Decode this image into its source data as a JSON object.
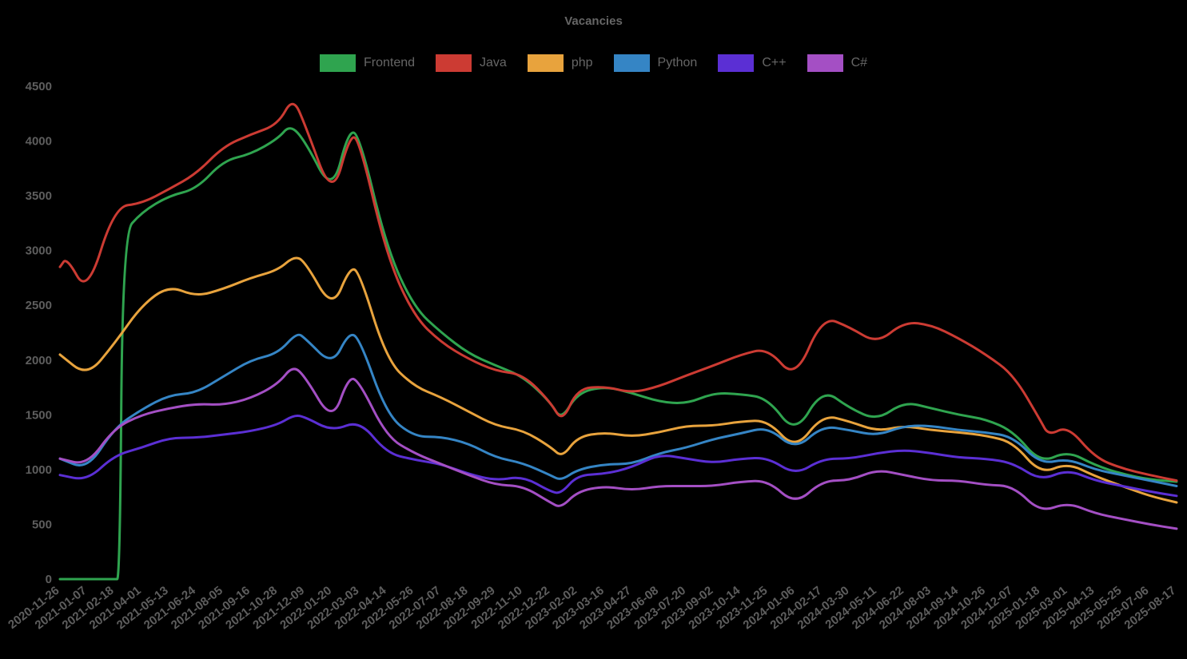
{
  "chart_data": {
    "type": "line",
    "title": "Vacancies",
    "xlabel": "",
    "ylabel": "",
    "ylim": [
      0,
      4500
    ],
    "yticks": [
      0,
      500,
      1000,
      1500,
      2000,
      2500,
      3000,
      3500,
      4000,
      4500
    ],
    "grid": false,
    "legend_position": "top",
    "background_color": "#000000",
    "text_color": "#5e5e5e",
    "categories": [
      "2020-11-26",
      "2021-01-07",
      "2021-02-18",
      "2021-04-01",
      "2021-05-13",
      "2021-06-24",
      "2021-08-05",
      "2021-09-16",
      "2021-10-28",
      "2021-12-09",
      "2022-01-20",
      "2022-03-03",
      "2022-04-14",
      "2022-05-26",
      "2022-07-07",
      "2022-08-18",
      "2022-09-29",
      "2022-11-10",
      "2022-12-22",
      "2023-02-02",
      "2023-03-16",
      "2023-04-27",
      "2023-06-08",
      "2023-07-20",
      "2023-09-02",
      "2023-10-14",
      "2023-11-25",
      "2024-01-06",
      "2024-02-17",
      "2024-03-30",
      "2024-05-11",
      "2024-06-22",
      "2024-08-03",
      "2024-09-14",
      "2024-10-26",
      "2024-12-07",
      "2025-01-18",
      "2025-03-01",
      "2025-04-13",
      "2025-05-25",
      "2025-07-06",
      "2025-08-17"
    ],
    "series": [
      {
        "name": "Frontend",
        "color": "#2fa44f",
        "values": [
          0,
          0,
          0,
          3350,
          3500,
          3560,
          3820,
          3880,
          4020,
          4000,
          3520,
          4050,
          3020,
          2480,
          2250,
          2060,
          1950,
          1850,
          1620,
          1700,
          1760,
          1700,
          1620,
          1600,
          1700,
          1690,
          1650,
          1320,
          1740,
          1560,
          1450,
          1620,
          1560,
          1500,
          1460,
          1350,
          1060,
          1170,
          1040,
          960,
          910,
          890
        ],
        "extra_points": [
          {
            "i": 2.2,
            "v": 0
          },
          {
            "i": 2.3,
            "v": 3150
          },
          {
            "i": 8.45,
            "v": 4150
          },
          {
            "i": 10.6,
            "v": 4100
          },
          {
            "i": 18.4,
            "v": 1450
          }
        ]
      },
      {
        "name": "Java",
        "color": "#cc3b33",
        "values": [
          2850,
          2600,
          3400,
          3430,
          3560,
          3700,
          3950,
          4060,
          4150,
          4150,
          3470,
          4000,
          2950,
          2400,
          2160,
          2010,
          1900,
          1870,
          1620,
          1740,
          1760,
          1700,
          1760,
          1860,
          1950,
          2050,
          2110,
          1820,
          2400,
          2300,
          2150,
          2350,
          2320,
          2200,
          2050,
          1870,
          1450,
          1400,
          1110,
          1010,
          950,
          900
        ],
        "extra_points": [
          {
            "i": 0.25,
            "v": 2940
          },
          {
            "i": 8.55,
            "v": 4400
          },
          {
            "i": 10.65,
            "v": 4060
          },
          {
            "i": 18.45,
            "v": 1430
          },
          {
            "i": 36.3,
            "v": 1310
          }
        ]
      },
      {
        "name": "php",
        "color": "#e8a33d",
        "values": [
          2050,
          1850,
          2150,
          2500,
          2680,
          2580,
          2650,
          2750,
          2820,
          2900,
          2460,
          2800,
          2000,
          1760,
          1660,
          1530,
          1400,
          1360,
          1210,
          1300,
          1340,
          1300,
          1340,
          1400,
          1400,
          1440,
          1450,
          1180,
          1500,
          1440,
          1350,
          1400,
          1360,
          1340,
          1310,
          1250,
          960,
          1060,
          940,
          850,
          760,
          700
        ],
        "extra_points": [
          {
            "i": 8.6,
            "v": 2950
          },
          {
            "i": 10.65,
            "v": 2850
          },
          {
            "i": 18.45,
            "v": 1110
          }
        ]
      },
      {
        "name": "Python",
        "color": "#3585c5",
        "values": [
          1100,
          1000,
          1380,
          1550,
          1680,
          1700,
          1850,
          2000,
          2060,
          2200,
          1950,
          2200,
          1500,
          1300,
          1300,
          1240,
          1110,
          1060,
          950,
          1000,
          1050,
          1050,
          1150,
          1200,
          1280,
          1330,
          1390,
          1180,
          1400,
          1360,
          1310,
          1400,
          1400,
          1360,
          1340,
          1300,
          1050,
          1100,
          1000,
          950,
          900,
          850
        ],
        "extra_points": [
          {
            "i": 8.7,
            "v": 2250
          },
          {
            "i": 10.6,
            "v": 2250
          },
          {
            "i": 18.4,
            "v": 900
          }
        ]
      },
      {
        "name": "C++",
        "color": "#5b2fd4",
        "values": [
          950,
          900,
          1130,
          1200,
          1290,
          1290,
          1320,
          1350,
          1410,
          1480,
          1350,
          1450,
          1150,
          1090,
          1050,
          960,
          900,
          940,
          800,
          950,
          960,
          1020,
          1140,
          1100,
          1060,
          1100,
          1110,
          950,
          1100,
          1100,
          1150,
          1180,
          1150,
          1110,
          1100,
          1060,
          900,
          1000,
          900,
          850,
          800,
          760
        ],
        "extra_points": [
          {
            "i": 8.6,
            "v": 1500
          },
          {
            "i": 18.4,
            "v": 780
          }
        ]
      },
      {
        "name": "C#",
        "color": "#a44fc4",
        "values": [
          1100,
          1040,
          1380,
          1500,
          1560,
          1600,
          1590,
          1650,
          1780,
          1850,
          1430,
          1800,
          1300,
          1150,
          1050,
          950,
          860,
          850,
          700,
          800,
          850,
          810,
          850,
          850,
          850,
          890,
          900,
          680,
          900,
          900,
          1000,
          950,
          900,
          900,
          860,
          850,
          610,
          700,
          600,
          550,
          500,
          460
        ],
        "extra_points": [
          {
            "i": 8.55,
            "v": 1950
          },
          {
            "i": 10.6,
            "v": 1850
          },
          {
            "i": 18.4,
            "v": 650
          }
        ]
      }
    ]
  }
}
